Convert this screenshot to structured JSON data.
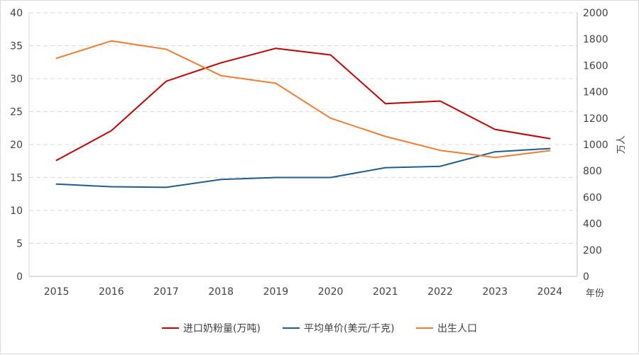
{
  "chart_data": {
    "type": "line",
    "x": [
      "2015",
      "2016",
      "2017",
      "2018",
      "2019",
      "2020",
      "2021",
      "2022",
      "2023",
      "2024"
    ],
    "xlabel": "年份",
    "y_left": {
      "ylim": [
        0,
        40
      ],
      "ticks": [
        0,
        5,
        10,
        15,
        20,
        25,
        30,
        35,
        40
      ]
    },
    "y_right": {
      "label": "万人",
      "ylim": [
        0,
        2000
      ],
      "ticks": [
        0,
        200,
        400,
        600,
        800,
        1000,
        1200,
        1400,
        1600,
        1800,
        2000
      ]
    },
    "grid": true,
    "legend_position": "bottom",
    "series": [
      {
        "name": "进口奶粉量(万吨)",
        "axis": "left",
        "color": "#C00000",
        "values": [
          17.6,
          22.1,
          29.6,
          32.4,
          34.6,
          33.6,
          26.2,
          26.6,
          22.3,
          20.9
        ]
      },
      {
        "name": "平均单价(美元/千克)",
        "axis": "left",
        "color": "#1F5C8B",
        "values": [
          14.0,
          13.6,
          13.5,
          14.7,
          15.0,
          15.0,
          16.5,
          16.7,
          18.9,
          19.4
        ]
      },
      {
        "name": "出生人口",
        "axis": "right",
        "color": "#ED7D31",
        "values": [
          1655,
          1786,
          1723,
          1523,
          1465,
          1200,
          1062,
          956,
          902,
          954
        ]
      }
    ]
  }
}
